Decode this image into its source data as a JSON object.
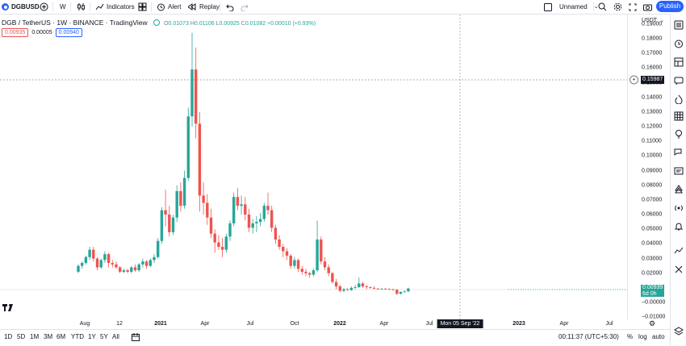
{
  "toolbar": {
    "symbol": "DGBUSD",
    "interval": "W",
    "indicators": "Indicators",
    "alert": "Alert",
    "replay": "Replay",
    "layout_name": "Unnamed",
    "publish": "Publish"
  },
  "legend": {
    "title": "DGB / TetherUS · 1W · BINANCE · TradingView",
    "open_label": "O",
    "open": "0.01073",
    "high_label": "H",
    "high": "0.01106",
    "low_label": "L",
    "low": "0.00925",
    "close_label": "C",
    "close": "0.01082",
    "change": "+0.00010 (+0.93%)",
    "sell": "0.00935",
    "spread": "0.00005",
    "buy": "0.00940"
  },
  "price_scale": {
    "currency": "USDT",
    "ticks": [
      "0.19000",
      "0.18000",
      "0.17000",
      "0.16000",
      "0.15000",
      "0.14000",
      "0.13000",
      "0.12000",
      "0.11000",
      "0.10000",
      "0.09000",
      "0.08000",
      "0.07000",
      "0.06000",
      "0.05000",
      "0.04000",
      "0.03000",
      "0.02000",
      "0.01000",
      "−0.00000",
      "−0.01000"
    ],
    "crosshair_price": "0.15987",
    "current_price": "0.00939",
    "countdown": "6d 0h"
  },
  "time_axis": {
    "labels": [
      "Aug",
      "12",
      "2021",
      "Apr",
      "Jul",
      "Oct",
      "2022",
      "Apr",
      "Jul",
      "2023",
      "Apr",
      "Jul"
    ],
    "crosshair_date": "Mon 05 Sep '22"
  },
  "bottom": {
    "ranges": [
      "1D",
      "5D",
      "1M",
      "3M",
      "6M",
      "YTD",
      "1Y",
      "5Y",
      "All"
    ],
    "clock": "00:11:37 (UTC+5:30)",
    "percent": "%",
    "log": "log",
    "auto": "auto"
  },
  "colors": {
    "up": "#26a69a",
    "down": "#ef5350",
    "accent": "#2962ff"
  },
  "chart_data": {
    "type": "candlestick",
    "ylim": [
      -0.0115,
      0.1965
    ],
    "note_candles": "weekly OHLC estimated from screenshot",
    "candles": [
      [
        0.021,
        0.026,
        0.02,
        0.025
      ],
      [
        0.025,
        0.028,
        0.023,
        0.027
      ],
      [
        0.027,
        0.032,
        0.026,
        0.031
      ],
      [
        0.031,
        0.038,
        0.029,
        0.036
      ],
      [
        0.036,
        0.038,
        0.028,
        0.03
      ],
      [
        0.03,
        0.031,
        0.022,
        0.024
      ],
      [
        0.024,
        0.03,
        0.023,
        0.029
      ],
      [
        0.029,
        0.035,
        0.027,
        0.033
      ],
      [
        0.033,
        0.034,
        0.024,
        0.027
      ],
      [
        0.027,
        0.029,
        0.024,
        0.026
      ],
      [
        0.026,
        0.028,
        0.023,
        0.024
      ],
      [
        0.024,
        0.025,
        0.02,
        0.021
      ],
      [
        0.021,
        0.023,
        0.02,
        0.022
      ],
      [
        0.022,
        0.023,
        0.02,
        0.021
      ],
      [
        0.021,
        0.025,
        0.02,
        0.024
      ],
      [
        0.024,
        0.026,
        0.021,
        0.022
      ],
      [
        0.022,
        0.027,
        0.021,
        0.026
      ],
      [
        0.026,
        0.03,
        0.024,
        0.028
      ],
      [
        0.028,
        0.029,
        0.023,
        0.025
      ],
      [
        0.025,
        0.03,
        0.024,
        0.029
      ],
      [
        0.029,
        0.033,
        0.027,
        0.031
      ],
      [
        0.031,
        0.044,
        0.03,
        0.042
      ],
      [
        0.042,
        0.065,
        0.04,
        0.063
      ],
      [
        0.063,
        0.077,
        0.052,
        0.06
      ],
      [
        0.06,
        0.066,
        0.045,
        0.048
      ],
      [
        0.048,
        0.06,
        0.046,
        0.058
      ],
      [
        0.058,
        0.08,
        0.055,
        0.076
      ],
      [
        0.076,
        0.082,
        0.062,
        0.066
      ],
      [
        0.066,
        0.09,
        0.064,
        0.085
      ],
      [
        0.085,
        0.133,
        0.083,
        0.127
      ],
      [
        0.127,
        0.184,
        0.12,
        0.159
      ],
      [
        0.159,
        0.174,
        0.112,
        0.122
      ],
      [
        0.122,
        0.13,
        0.062,
        0.073
      ],
      [
        0.073,
        0.082,
        0.06,
        0.068
      ],
      [
        0.068,
        0.074,
        0.053,
        0.058
      ],
      [
        0.058,
        0.064,
        0.044,
        0.047
      ],
      [
        0.047,
        0.05,
        0.034,
        0.041
      ],
      [
        0.041,
        0.046,
        0.036,
        0.038
      ],
      [
        0.038,
        0.044,
        0.031,
        0.036
      ],
      [
        0.036,
        0.047,
        0.034,
        0.045
      ],
      [
        0.045,
        0.056,
        0.042,
        0.054
      ],
      [
        0.054,
        0.075,
        0.052,
        0.072
      ],
      [
        0.072,
        0.078,
        0.063,
        0.066
      ],
      [
        0.066,
        0.073,
        0.06,
        0.067
      ],
      [
        0.067,
        0.072,
        0.056,
        0.06
      ],
      [
        0.06,
        0.064,
        0.048,
        0.051
      ],
      [
        0.051,
        0.057,
        0.047,
        0.054
      ],
      [
        0.054,
        0.059,
        0.048,
        0.055
      ],
      [
        0.055,
        0.061,
        0.052,
        0.057
      ],
      [
        0.057,
        0.068,
        0.055,
        0.066
      ],
      [
        0.066,
        0.075,
        0.06,
        0.063
      ],
      [
        0.063,
        0.066,
        0.048,
        0.051
      ],
      [
        0.051,
        0.053,
        0.04,
        0.043
      ],
      [
        0.043,
        0.046,
        0.036,
        0.038
      ],
      [
        0.038,
        0.04,
        0.031,
        0.035
      ],
      [
        0.035,
        0.037,
        0.029,
        0.032
      ],
      [
        0.032,
        0.033,
        0.023,
        0.025
      ],
      [
        0.025,
        0.031,
        0.023,
        0.029
      ],
      [
        0.029,
        0.03,
        0.021,
        0.023
      ],
      [
        0.023,
        0.025,
        0.019,
        0.021
      ],
      [
        0.021,
        0.023,
        0.018,
        0.02
      ],
      [
        0.02,
        0.021,
        0.017,
        0.019
      ],
      [
        0.019,
        0.023,
        0.018,
        0.022
      ],
      [
        0.022,
        0.056,
        0.021,
        0.043
      ],
      [
        0.043,
        0.045,
        0.026,
        0.028
      ],
      [
        0.028,
        0.031,
        0.022,
        0.024
      ],
      [
        0.024,
        0.026,
        0.018,
        0.02
      ],
      [
        0.02,
        0.021,
        0.013,
        0.014
      ],
      [
        0.014,
        0.016,
        0.009,
        0.011
      ],
      [
        0.011,
        0.012,
        0.007,
        0.008
      ],
      [
        0.008,
        0.01,
        0.007,
        0.009
      ],
      [
        0.009,
        0.01,
        0.008,
        0.0085
      ],
      [
        0.0085,
        0.011,
        0.008,
        0.01
      ],
      [
        0.01,
        0.012,
        0.009,
        0.0105
      ],
      [
        0.0105,
        0.017,
        0.01,
        0.013
      ],
      [
        0.013,
        0.014,
        0.01,
        0.011
      ],
      [
        0.011,
        0.012,
        0.009,
        0.0105
      ],
      [
        0.0105,
        0.011,
        0.0095,
        0.01
      ],
      [
        0.01,
        0.011,
        0.009,
        0.0095
      ],
      [
        0.0095,
        0.01,
        0.009,
        0.0092
      ],
      [
        0.0092,
        0.0098,
        0.0088,
        0.0094
      ],
      [
        0.0094,
        0.01,
        0.009,
        0.0093
      ],
      [
        0.0093,
        0.0096,
        0.0085,
        0.009
      ],
      [
        0.009,
        0.0095,
        0.0082,
        0.0087
      ],
      [
        0.0087,
        0.0092,
        0.005,
        0.006
      ],
      [
        0.006,
        0.0075,
        0.0055,
        0.0072
      ],
      [
        0.0072,
        0.0082,
        0.0066,
        0.0076
      ],
      [
        0.0076,
        0.0102,
        0.0072,
        0.0096
      ]
    ]
  }
}
